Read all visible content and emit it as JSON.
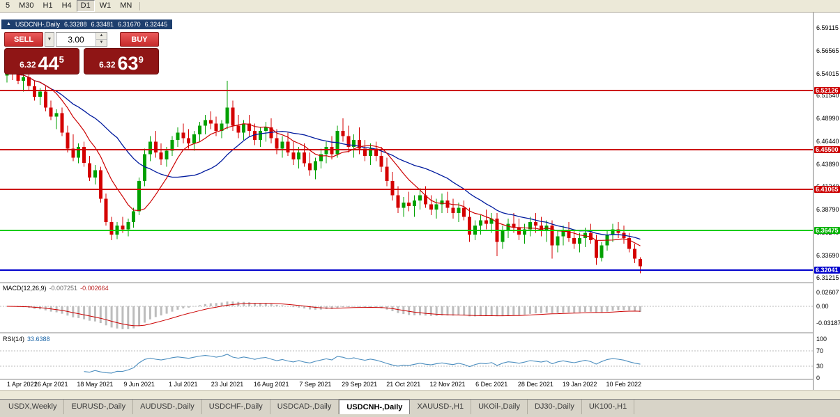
{
  "toolbar": {
    "timeframes": [
      {
        "label": "5",
        "active": false
      },
      {
        "label": "M30",
        "active": false
      },
      {
        "label": "H1",
        "active": false
      },
      {
        "label": "H4",
        "active": false
      },
      {
        "label": "D1",
        "active": true
      },
      {
        "label": "W1",
        "active": false
      },
      {
        "label": "MN",
        "active": false
      }
    ]
  },
  "chart_header": {
    "symbol": "USDCNH-,Daily",
    "open": "6.33288",
    "high": "6.33481",
    "low": "6.31670",
    "close": "6.32445"
  },
  "trade_panel": {
    "sell_label": "SELL",
    "buy_label": "BUY",
    "volume": "3.00",
    "sell_price": {
      "prefix": "6.32",
      "big": "44",
      "sup": "5"
    },
    "buy_price": {
      "prefix": "6.32",
      "big": "63",
      "sup": "9"
    },
    "panel_color": "#8f1515",
    "button_color": "#d83838"
  },
  "price_axis": {
    "ticks": [
      "6.59115",
      "6.56565",
      "6.54015",
      "6.51540",
      "6.48990",
      "6.46440",
      "6.43890",
      "6.41340",
      "6.38790",
      "6.36240",
      "6.33690",
      "6.31215"
    ],
    "line_labels": [
      {
        "value": "6.52126",
        "color": "#cc0000"
      },
      {
        "value": "6.45500",
        "color": "#cc0000"
      },
      {
        "value": "6.41065",
        "color": "#cc0000"
      },
      {
        "value": "6.36475",
        "color": "#00b200"
      },
      {
        "value": "6.32041",
        "color": "#0000cc"
      }
    ]
  },
  "indicators": {
    "macd": {
      "name": "MACD(12,26,9)",
      "value_main": "-0.007251",
      "value_signal": "-0.002664",
      "axis_labels": [
        "0.02607",
        "0.00",
        "-0.03187"
      ]
    },
    "rsi": {
      "name": "RSI(14)",
      "value": "33.6388",
      "axis_labels": [
        "100",
        "70",
        "30",
        "0"
      ],
      "levels": [
        70,
        30
      ]
    }
  },
  "chart_data": {
    "type": "candlestick",
    "symbol": "USDCNH-",
    "timeframe": "Daily",
    "y_range": [
      6.311,
      6.599
    ],
    "up_color": "#00a000",
    "down_color": "#d40000",
    "ma_fast": {
      "period": 9,
      "color": "#cc0000"
    },
    "ma_slow": {
      "period": 21,
      "color": "#001a9e"
    },
    "hlines": [
      {
        "price": 6.52126,
        "color": "#cc0000"
      },
      {
        "price": 6.455,
        "color": "#cc0000"
      },
      {
        "price": 6.41065,
        "color": "#cc0000"
      },
      {
        "price": 6.36475,
        "color": "#00cc00"
      },
      {
        "price": 6.32041,
        "color": "#0000cc"
      }
    ],
    "ohlc": [
      [
        6.538,
        6.552,
        6.53,
        6.545
      ],
      [
        6.545,
        6.551,
        6.533,
        6.54
      ],
      [
        6.54,
        6.548,
        6.528,
        6.532
      ],
      [
        6.532,
        6.54,
        6.52,
        6.536
      ],
      [
        6.536,
        6.542,
        6.522,
        6.526
      ],
      [
        6.526,
        6.532,
        6.51,
        6.514
      ],
      [
        6.514,
        6.524,
        6.505,
        6.52
      ],
      [
        6.52,
        6.526,
        6.498,
        6.502
      ],
      [
        6.502,
        6.51,
        6.488,
        6.492
      ],
      [
        6.492,
        6.5,
        6.478,
        6.496
      ],
      [
        6.496,
        6.502,
        6.47,
        6.474
      ],
      [
        6.474,
        6.482,
        6.452,
        6.456
      ],
      [
        6.456,
        6.472,
        6.442,
        6.446
      ],
      [
        6.446,
        6.462,
        6.44,
        6.458
      ],
      [
        6.458,
        6.464,
        6.436,
        6.44
      ],
      [
        6.44,
        6.448,
        6.42,
        6.424
      ],
      [
        6.424,
        6.438,
        6.416,
        6.432
      ],
      [
        6.432,
        6.436,
        6.396,
        6.4
      ],
      [
        6.4,
        6.406,
        6.37,
        6.374
      ],
      [
        6.374,
        6.38,
        6.354,
        6.36
      ],
      [
        6.36,
        6.374,
        6.355,
        6.37
      ],
      [
        6.37,
        6.38,
        6.362,
        6.366
      ],
      [
        6.366,
        6.378,
        6.358,
        6.374
      ],
      [
        6.374,
        6.39,
        6.368,
        6.386
      ],
      [
        6.386,
        6.424,
        6.382,
        6.42
      ],
      [
        6.42,
        6.456,
        6.414,
        6.45
      ],
      [
        6.45,
        6.47,
        6.442,
        6.464
      ],
      [
        6.464,
        6.476,
        6.446,
        6.452
      ],
      [
        6.452,
        6.462,
        6.438,
        6.444
      ],
      [
        6.444,
        6.458,
        6.436,
        6.454
      ],
      [
        6.454,
        6.47,
        6.448,
        6.466
      ],
      [
        6.466,
        6.48,
        6.458,
        6.474
      ],
      [
        6.474,
        6.484,
        6.462,
        6.468
      ],
      [
        6.468,
        6.478,
        6.456,
        6.462
      ],
      [
        6.462,
        6.476,
        6.454,
        6.472
      ],
      [
        6.472,
        6.486,
        6.464,
        6.482
      ],
      [
        6.482,
        6.494,
        6.472,
        6.488
      ],
      [
        6.488,
        6.498,
        6.478,
        6.484
      ],
      [
        6.484,
        6.492,
        6.47,
        6.476
      ],
      [
        6.476,
        6.488,
        6.468,
        6.484
      ],
      [
        6.484,
        6.532,
        6.478,
        6.502
      ],
      [
        6.502,
        6.51,
        6.476,
        6.482
      ],
      [
        6.482,
        6.494,
        6.468,
        6.474
      ],
      [
        6.474,
        6.488,
        6.466,
        6.484
      ],
      [
        6.484,
        6.494,
        6.47,
        6.476
      ],
      [
        6.476,
        6.484,
        6.46,
        6.466
      ],
      [
        6.466,
        6.48,
        6.458,
        6.476
      ],
      [
        6.476,
        6.486,
        6.464,
        6.48
      ],
      [
        6.48,
        6.49,
        6.462,
        6.468
      ],
      [
        6.468,
        6.478,
        6.45,
        6.456
      ],
      [
        6.456,
        6.47,
        6.446,
        6.464
      ],
      [
        6.464,
        6.474,
        6.448,
        6.452
      ],
      [
        6.452,
        6.464,
        6.438,
        6.444
      ],
      [
        6.444,
        6.458,
        6.434,
        6.452
      ],
      [
        6.452,
        6.462,
        6.436,
        6.44
      ],
      [
        6.44,
        6.452,
        6.426,
        6.432
      ],
      [
        6.432,
        6.446,
        6.422,
        6.442
      ],
      [
        6.442,
        6.456,
        6.434,
        6.45
      ],
      [
        6.45,
        6.464,
        6.44,
        6.458
      ],
      [
        6.458,
        6.47,
        6.444,
        6.45
      ],
      [
        6.45,
        6.482,
        6.446,
        6.476
      ],
      [
        6.476,
        6.49,
        6.464,
        6.47
      ],
      [
        6.47,
        6.482,
        6.452,
        6.458
      ],
      [
        6.458,
        6.472,
        6.446,
        6.466
      ],
      [
        6.466,
        6.48,
        6.45,
        6.456
      ],
      [
        6.456,
        6.466,
        6.442,
        6.448
      ],
      [
        6.448,
        6.462,
        6.438,
        6.456
      ],
      [
        6.456,
        6.464,
        6.442,
        6.448
      ],
      [
        6.448,
        6.458,
        6.43,
        6.436
      ],
      [
        6.436,
        6.446,
        6.414,
        6.42
      ],
      [
        6.42,
        6.43,
        6.398,
        6.404
      ],
      [
        6.404,
        6.414,
        6.384,
        6.39
      ],
      [
        6.39,
        6.402,
        6.38,
        6.396
      ],
      [
        6.396,
        6.408,
        6.386,
        6.392
      ],
      [
        6.392,
        6.404,
        6.38,
        6.398
      ],
      [
        6.398,
        6.412,
        6.388,
        6.404
      ],
      [
        6.404,
        6.414,
        6.39,
        6.394
      ],
      [
        6.394,
        6.404,
        6.382,
        6.388
      ],
      [
        6.388,
        6.4,
        6.378,
        6.394
      ],
      [
        6.394,
        6.406,
        6.384,
        6.398
      ],
      [
        6.398,
        6.408,
        6.384,
        6.39
      ],
      [
        6.39,
        6.4,
        6.378,
        6.384
      ],
      [
        6.384,
        6.396,
        6.374,
        6.39
      ],
      [
        6.39,
        6.398,
        6.376,
        6.38
      ],
      [
        6.38,
        6.39,
        6.352,
        6.36
      ],
      [
        6.36,
        6.376,
        6.354,
        6.37
      ],
      [
        6.37,
        6.382,
        6.36,
        6.376
      ],
      [
        6.376,
        6.388,
        6.366,
        6.372
      ],
      [
        6.372,
        6.384,
        6.362,
        6.378
      ],
      [
        6.378,
        6.384,
        6.336,
        6.352
      ],
      [
        6.352,
        6.37,
        6.344,
        6.364
      ],
      [
        6.364,
        6.378,
        6.356,
        6.372
      ],
      [
        6.372,
        6.384,
        6.362,
        6.368
      ],
      [
        6.368,
        6.378,
        6.354,
        6.36
      ],
      [
        6.36,
        6.372,
        6.35,
        6.366
      ],
      [
        6.366,
        6.38,
        6.358,
        6.374
      ],
      [
        6.374,
        6.384,
        6.362,
        6.37
      ],
      [
        6.37,
        6.38,
        6.358,
        6.364
      ],
      [
        6.364,
        6.376,
        6.352,
        6.37
      ],
      [
        6.37,
        6.376,
        6.333,
        6.348
      ],
      [
        6.348,
        6.364,
        6.34,
        6.358
      ],
      [
        6.358,
        6.37,
        6.348,
        6.364
      ],
      [
        6.364,
        6.374,
        6.352,
        6.356
      ],
      [
        6.356,
        6.366,
        6.344,
        6.35
      ],
      [
        6.35,
        6.362,
        6.34,
        6.356
      ],
      [
        6.356,
        6.368,
        6.346,
        6.362
      ],
      [
        6.362,
        6.372,
        6.35,
        6.354
      ],
      [
        6.354,
        6.36,
        6.326,
        6.334
      ],
      [
        6.334,
        6.352,
        6.33,
        6.348
      ],
      [
        6.348,
        6.364,
        6.342,
        6.36
      ],
      [
        6.36,
        6.372,
        6.352,
        6.366
      ],
      [
        6.366,
        6.374,
        6.356,
        6.362
      ],
      [
        6.362,
        6.37,
        6.35,
        6.356
      ],
      [
        6.356,
        6.362,
        6.34,
        6.344
      ],
      [
        6.344,
        6.35,
        6.328,
        6.333
      ],
      [
        6.33288,
        6.33481,
        6.3167,
        6.32445
      ]
    ],
    "date_labels": [
      {
        "index": 0,
        "label": "1 Apr 2021"
      },
      {
        "index": 8,
        "label": "26 Apr 2021"
      },
      {
        "index": 16,
        "label": "18 May 2021"
      },
      {
        "index": 24,
        "label": "9 Jun 2021"
      },
      {
        "index": 32,
        "label": "1 Jul 2021"
      },
      {
        "index": 40,
        "label": "23 Jul 2021"
      },
      {
        "index": 48,
        "label": "16 Aug 2021"
      },
      {
        "index": 56,
        "label": "7 Sep 2021"
      },
      {
        "index": 64,
        "label": "29 Sep 2021"
      },
      {
        "index": 72,
        "label": "21 Oct 2021"
      },
      {
        "index": 80,
        "label": "12 Nov 2021"
      },
      {
        "index": 88,
        "label": "6 Dec 2021"
      },
      {
        "index": 96,
        "label": "28 Dec 2021"
      },
      {
        "index": 104,
        "label": "19 Jan 2022"
      },
      {
        "index": 112,
        "label": "10 Feb 2022"
      }
    ]
  },
  "tabs": [
    {
      "label": "USDX,Weekly",
      "active": false
    },
    {
      "label": "EURUSD-,Daily",
      "active": false
    },
    {
      "label": "AUDUSD-,Daily",
      "active": false
    },
    {
      "label": "USDCHF-,Daily",
      "active": false
    },
    {
      "label": "USDCAD-,Daily",
      "active": false
    },
    {
      "label": "USDCNH-,Daily",
      "active": true
    },
    {
      "label": "XAUUSD-,H1",
      "active": false
    },
    {
      "label": "UKOil-,Daily",
      "active": false
    },
    {
      "label": "DJ30-,Daily",
      "active": false
    },
    {
      "label": "UK100-,H1",
      "active": false
    }
  ]
}
